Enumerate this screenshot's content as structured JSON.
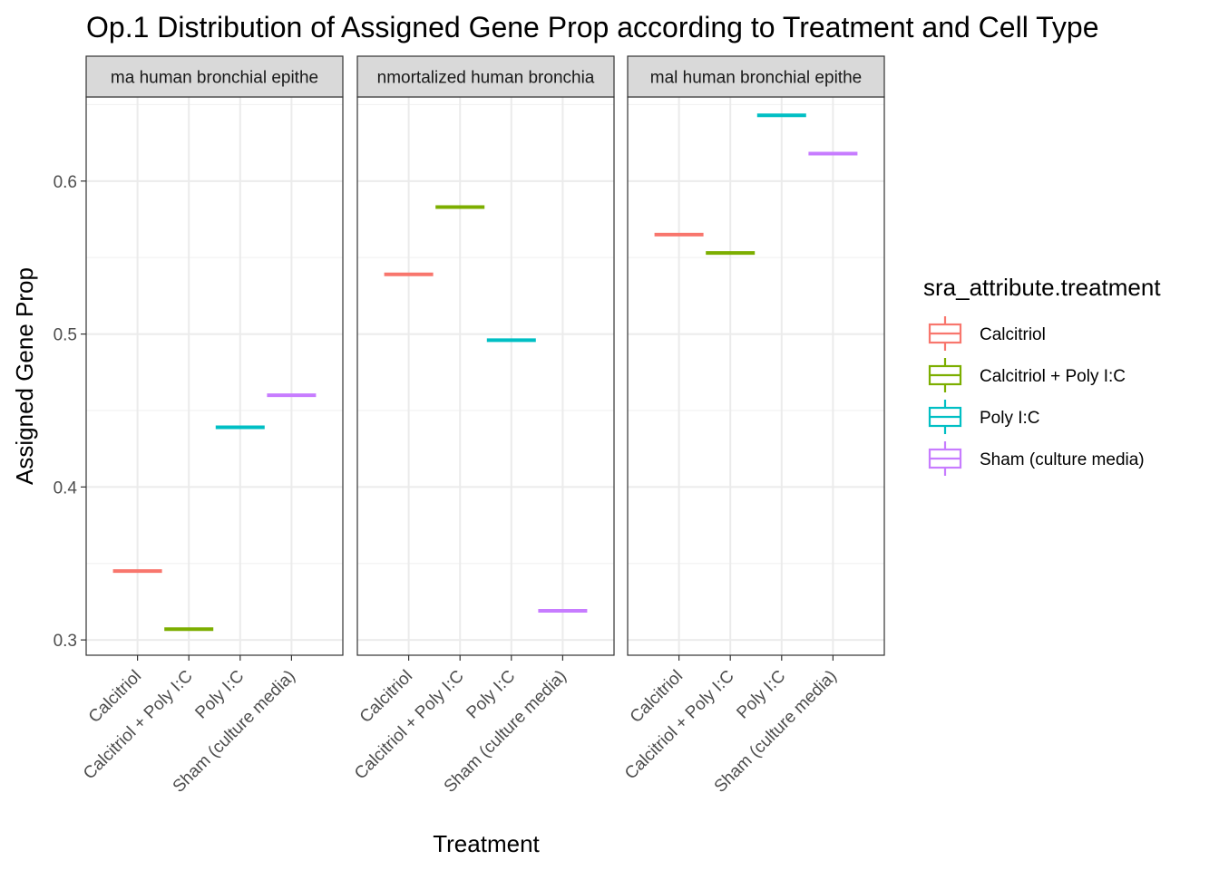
{
  "chart_data": {
    "type": "boxplot",
    "title": "Op.1 Distribution of Assigned Gene Prop according to Treatment and Cell Type",
    "xlabel": "Treatment",
    "ylabel": "Assigned Gene Prop",
    "ylim": [
      0.29,
      0.655
    ],
    "y_ticks": [
      0.3,
      0.4,
      0.5,
      0.6
    ],
    "y_tick_labels": [
      "0.3",
      "0.4",
      "0.5",
      "0.6"
    ],
    "grid": true,
    "legend": {
      "title": "sra_attribute.treatment",
      "position": "right",
      "entries": [
        {
          "label": "Calcitriol",
          "color": "#F8766D"
        },
        {
          "label": "Calcitriol + Poly I:C",
          "color": "#7CAE00"
        },
        {
          "label": "Poly I:C",
          "color": "#00BFC4"
        },
        {
          "label": "Sham (culture media)",
          "color": "#C77CFF"
        }
      ]
    },
    "categories": [
      "Calcitriol",
      "Calcitriol + Poly I:C",
      "Poly I:C",
      "Sham (culture media)"
    ],
    "facets": [
      {
        "label": "ma human bronchial epithe",
        "values": [
          0.345,
          0.307,
          0.439,
          0.46
        ]
      },
      {
        "label": "nmortalized human bronchia",
        "values": [
          0.539,
          0.583,
          0.496,
          0.319
        ]
      },
      {
        "label": "mal human bronchial epithe",
        "values": [
          0.565,
          0.553,
          0.643,
          0.618
        ]
      }
    ]
  }
}
